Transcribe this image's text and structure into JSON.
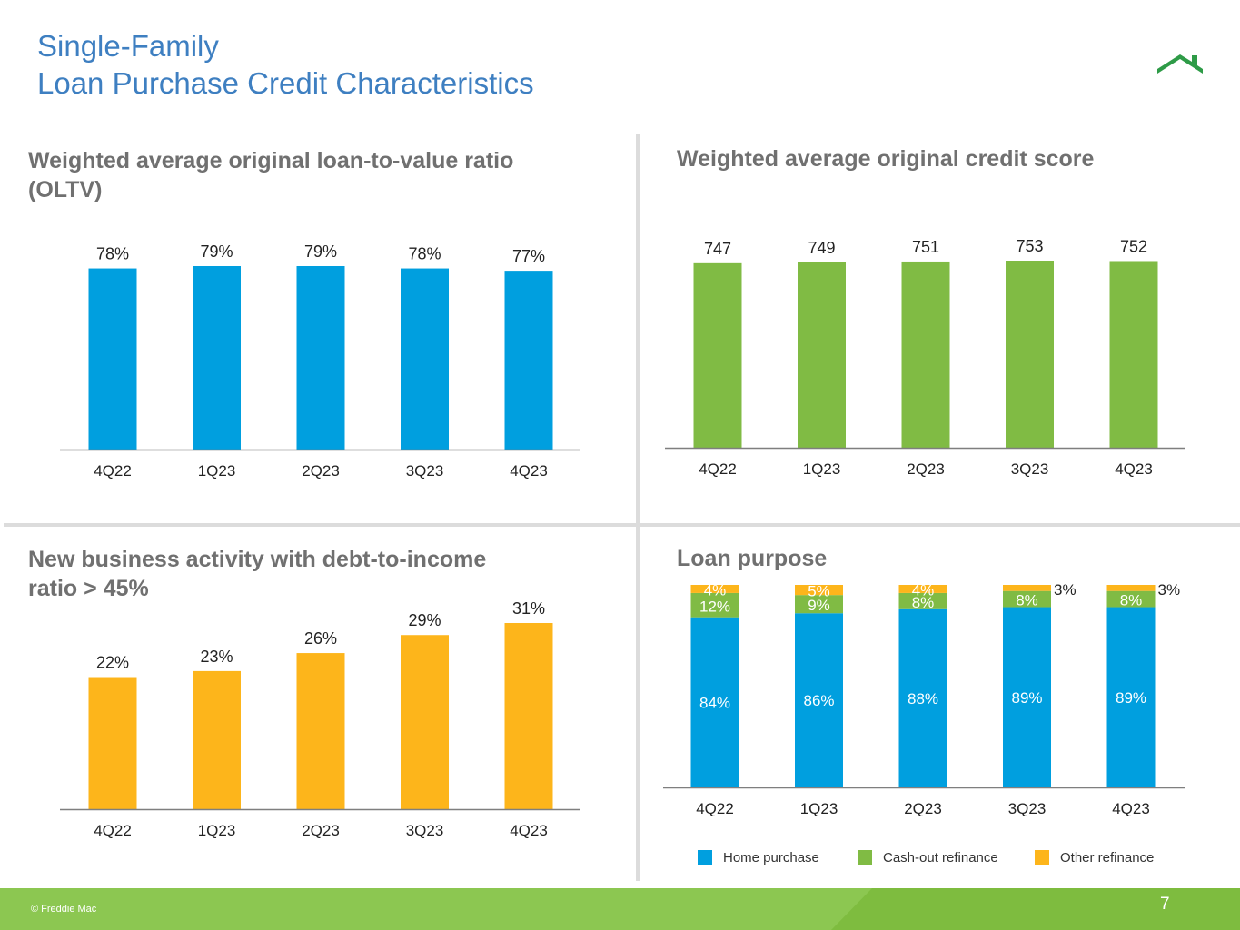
{
  "page": {
    "title": "Single-Family\nLoan Purchase Credit Characteristics",
    "copyright": "© Freddie Mac",
    "page_number": "7",
    "logo_icon": "house-roof-icon"
  },
  "colors": {
    "title": "#3e7fc1",
    "blue": "#009fdf",
    "green": "#80bb44",
    "orange": "#fdb51b",
    "footer": "#8cc751",
    "heading_gray": "#707070"
  },
  "chart_data": [
    {
      "type": "bar",
      "title": "Weighted average original loan-to-value ratio (OLTV)",
      "categories": [
        "4Q22",
        "1Q23",
        "2Q23",
        "3Q23",
        "4Q23"
      ],
      "values": [
        78,
        79,
        79,
        78,
        77
      ],
      "labels": [
        "78%",
        "79%",
        "79%",
        "78%",
        "77%"
      ],
      "unit": "%",
      "color": "#009fdf",
      "ylim": [
        0,
        79
      ],
      "grid": false
    },
    {
      "type": "bar",
      "title": "Weighted average original credit score",
      "categories": [
        "4Q22",
        "1Q23",
        "2Q23",
        "3Q23",
        "4Q23"
      ],
      "values": [
        747,
        749,
        751,
        753,
        752
      ],
      "labels": [
        "747",
        "749",
        "751",
        "753",
        "752"
      ],
      "color": "#80bb44",
      "ylim": [
        700,
        753
      ],
      "grid": false
    },
    {
      "type": "bar",
      "title": "New business activity with debt-to-income ratio > 45%",
      "categories": [
        "4Q22",
        "1Q23",
        "2Q23",
        "3Q23",
        "4Q23"
      ],
      "values": [
        22,
        23,
        26,
        29,
        31
      ],
      "labels": [
        "22%",
        "23%",
        "26%",
        "29%",
        "31%"
      ],
      "unit": "%",
      "color": "#fdb51b",
      "ylim": [
        0,
        31
      ],
      "grid": false
    },
    {
      "type": "bar",
      "stacked": true,
      "title": "Loan purpose",
      "categories": [
        "4Q22",
        "1Q23",
        "2Q23",
        "3Q23",
        "4Q23"
      ],
      "series": [
        {
          "name": "Home purchase",
          "values": [
            84,
            86,
            88,
            89,
            89
          ],
          "labels": [
            "84%",
            "86%",
            "88%",
            "89%",
            "89%"
          ],
          "color": "#009fdf"
        },
        {
          "name": "Cash-out refinance",
          "values": [
            12,
            9,
            8,
            8,
            8
          ],
          "labels": [
            "12%",
            "9%",
            "8%",
            "8%",
            "8%"
          ],
          "color": "#80bb44"
        },
        {
          "name": "Other refinance",
          "values": [
            4,
            5,
            4,
            3,
            3
          ],
          "labels": [
            "4%",
            "5%",
            "4%",
            "3%",
            "3%"
          ],
          "color": "#fdb51b"
        }
      ],
      "ylim": [
        0,
        100
      ],
      "legend": "bottom",
      "grid": false
    }
  ]
}
